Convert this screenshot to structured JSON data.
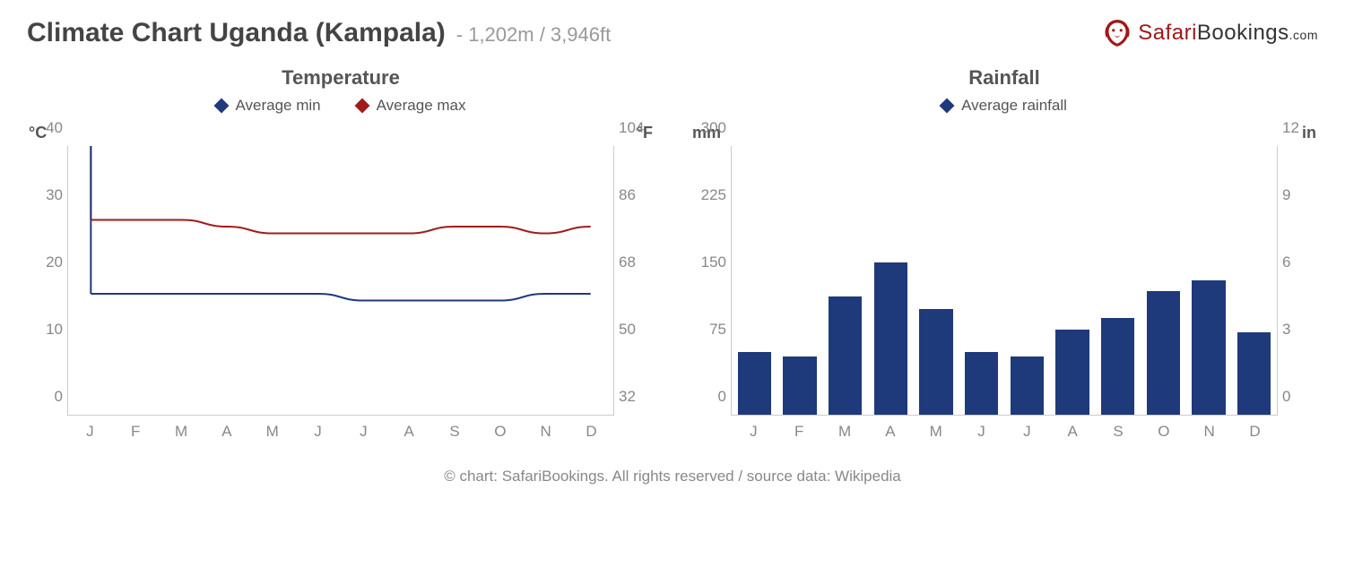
{
  "header": {
    "title": "Climate Chart Uganda (Kampala)",
    "subtitle": "- 1,202m / 3,946ft",
    "logo": {
      "icon_color": "#a01818",
      "text_safari": "Safari",
      "text_bookings": "Bookings",
      "text_com": ".com"
    }
  },
  "temperature_chart": {
    "type": "line",
    "title": "Temperature",
    "unit_left": "°C",
    "unit_right": "°F",
    "legend": [
      {
        "label": "Average min",
        "color": "#1f3a7a"
      },
      {
        "label": "Average max",
        "color": "#a01c1c"
      }
    ],
    "categories": [
      "J",
      "F",
      "M",
      "A",
      "M",
      "J",
      "J",
      "A",
      "S",
      "O",
      "N",
      "D"
    ],
    "ylim_left": [
      0,
      40
    ],
    "yticks_left": [
      0,
      10,
      20,
      30,
      40
    ],
    "ylim_right": [
      32,
      104
    ],
    "yticks_right": [
      32,
      50,
      68,
      86,
      104
    ],
    "series_min": {
      "color": "#1f3a7a",
      "values": [
        18,
        18,
        18,
        18,
        18,
        18,
        17,
        17,
        17,
        17,
        18,
        18
      ],
      "line_width": 2
    },
    "series_max": {
      "color": "#a01c1c",
      "values": [
        29,
        29,
        29,
        28,
        27,
        27,
        27,
        27,
        28,
        28,
        27,
        28
      ],
      "line_width": 2
    },
    "axis_color": "#cccccc",
    "tick_color": "#888888",
    "background_color": "#ffffff"
  },
  "rainfall_chart": {
    "type": "bar",
    "title": "Rainfall",
    "unit_left": "mm",
    "unit_right": "in",
    "legend": [
      {
        "label": "Average rainfall",
        "color": "#1f3a7a"
      }
    ],
    "categories": [
      "J",
      "F",
      "M",
      "A",
      "M",
      "J",
      "J",
      "A",
      "S",
      "O",
      "N",
      "D"
    ],
    "ylim_left": [
      0,
      300
    ],
    "yticks_left": [
      0,
      75,
      150,
      225,
      300
    ],
    "ylim_right": [
      0,
      12
    ],
    "yticks_right": [
      0,
      3,
      6,
      9,
      12
    ],
    "bar_color": "#1f3a7a",
    "values": [
      70,
      65,
      132,
      170,
      118,
      70,
      65,
      95,
      108,
      138,
      150,
      92
    ],
    "bar_width": 0.74,
    "axis_color": "#cccccc",
    "tick_color": "#888888",
    "background_color": "#ffffff"
  },
  "credit": "© chart: SafariBookings. All rights reserved / source data: Wikipedia"
}
